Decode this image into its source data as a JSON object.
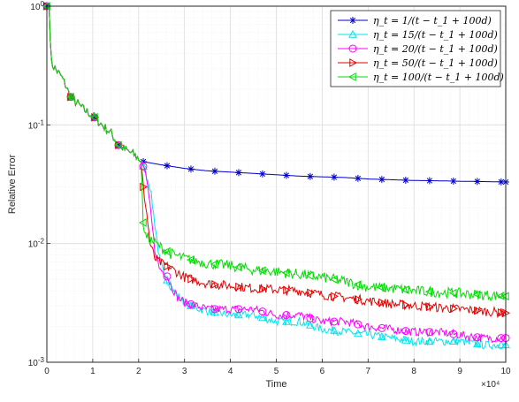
{
  "chart_data": {
    "type": "line",
    "title": "",
    "xlabel": "Time",
    "ylabel": "Relative Error",
    "x_multiplier_label": "×10⁴",
    "x_scale": 10000,
    "xlim": [
      0,
      100000
    ],
    "ylim": [
      0.001,
      1
    ],
    "y_scale": "log",
    "grid": true,
    "minor_grid": true,
    "legend_position": "top-right",
    "x_ticks": [
      0,
      1,
      2,
      3,
      4,
      5,
      6,
      7,
      8,
      9,
      10
    ],
    "y_ticks": [
      {
        "value": 1,
        "base": "10",
        "exp": "0"
      },
      {
        "value": 0.1,
        "base": "10",
        "exp": "-1"
      },
      {
        "value": 0.01,
        "base": "10",
        "exp": "-2"
      },
      {
        "value": 0.001,
        "base": "10",
        "exp": "-3"
      }
    ],
    "common_prefix": [
      [
        0,
        1.0
      ],
      [
        500,
        0.95
      ],
      [
        1000,
        0.33
      ],
      [
        2000,
        0.29
      ],
      [
        3000,
        0.26
      ],
      [
        4000,
        0.22
      ],
      [
        5000,
        0.175
      ],
      [
        6000,
        0.16
      ],
      [
        8000,
        0.135
      ],
      [
        10000,
        0.12
      ],
      [
        12000,
        0.1
      ],
      [
        14000,
        0.085
      ],
      [
        15500,
        0.068
      ],
      [
        17000,
        0.062
      ],
      [
        19000,
        0.056
      ],
      [
        20500,
        0.05
      ]
    ],
    "series": [
      {
        "name": "η_t = 1/(t − t_1 + 100d)",
        "color": "#0000cc",
        "marker": "star",
        "noise": 0.0,
        "points": [
          [
            20500,
            0.05
          ],
          [
            21000,
            0.049
          ],
          [
            25000,
            0.046
          ],
          [
            30000,
            0.043
          ],
          [
            35000,
            0.041
          ],
          [
            40000,
            0.04
          ],
          [
            45000,
            0.039
          ],
          [
            50000,
            0.038
          ],
          [
            55000,
            0.037
          ],
          [
            60000,
            0.0365
          ],
          [
            65000,
            0.036
          ],
          [
            70000,
            0.035
          ],
          [
            75000,
            0.0345
          ],
          [
            80000,
            0.034
          ],
          [
            85000,
            0.0338
          ],
          [
            90000,
            0.0335
          ],
          [
            95000,
            0.0333
          ],
          [
            100000,
            0.033
          ]
        ]
      },
      {
        "name": "η_t = 15/(t − t_1 + 100d)",
        "color": "#00e5ee",
        "marker": "triangle",
        "noise": 0.035,
        "points": [
          [
            20500,
            0.05
          ],
          [
            21500,
            0.04
          ],
          [
            22500,
            0.03
          ],
          [
            23500,
            0.015
          ],
          [
            24500,
            0.0075
          ],
          [
            25500,
            0.0055
          ],
          [
            26500,
            0.0047
          ],
          [
            28000,
            0.0038
          ],
          [
            30000,
            0.0032
          ],
          [
            32000,
            0.0029
          ],
          [
            35000,
            0.0027
          ],
          [
            40000,
            0.0025
          ],
          [
            45000,
            0.0025
          ],
          [
            50000,
            0.0022
          ],
          [
            55000,
            0.0022
          ],
          [
            60000,
            0.0019
          ],
          [
            65000,
            0.0018
          ],
          [
            70000,
            0.0017
          ],
          [
            75000,
            0.0016
          ],
          [
            80000,
            0.0015
          ],
          [
            85000,
            0.0015
          ],
          [
            90000,
            0.0015
          ],
          [
            95000,
            0.0014
          ],
          [
            100000,
            0.0014
          ]
        ]
      },
      {
        "name": "η_t = 20/(t − t_1 + 100d)",
        "color": "#ff00ff",
        "marker": "circle",
        "noise": 0.035,
        "points": [
          [
            20500,
            0.05
          ],
          [
            21500,
            0.04
          ],
          [
            22500,
            0.02
          ],
          [
            23500,
            0.009
          ],
          [
            24500,
            0.0062
          ],
          [
            26000,
            0.0055
          ],
          [
            27000,
            0.0045
          ],
          [
            28500,
            0.0035
          ],
          [
            30000,
            0.0032
          ],
          [
            35000,
            0.0028
          ],
          [
            40000,
            0.0028
          ],
          [
            45000,
            0.0028
          ],
          [
            50000,
            0.0025
          ],
          [
            55000,
            0.0025
          ],
          [
            60000,
            0.0022
          ],
          [
            65000,
            0.0022
          ],
          [
            70000,
            0.002
          ],
          [
            75000,
            0.0019
          ],
          [
            80000,
            0.0018
          ],
          [
            85000,
            0.0018
          ],
          [
            90000,
            0.0017
          ],
          [
            95000,
            0.0016
          ],
          [
            100000,
            0.0016
          ]
        ]
      },
      {
        "name": "η_t = 50/(t − t_1 + 100d)",
        "color": "#e60000",
        "marker": "triangle-right",
        "noise": 0.04,
        "points": [
          [
            20500,
            0.05
          ],
          [
            21000,
            0.03
          ],
          [
            21800,
            0.0175
          ],
          [
            22500,
            0.01
          ],
          [
            23500,
            0.0075
          ],
          [
            25000,
            0.0068
          ],
          [
            27000,
            0.0062
          ],
          [
            30000,
            0.0052
          ],
          [
            35000,
            0.0046
          ],
          [
            40000,
            0.0044
          ],
          [
            45000,
            0.0042
          ],
          [
            50000,
            0.0041
          ],
          [
            55000,
            0.004
          ],
          [
            60000,
            0.0037
          ],
          [
            65000,
            0.0035
          ],
          [
            70000,
            0.0033
          ],
          [
            75000,
            0.0031
          ],
          [
            80000,
            0.003
          ],
          [
            85000,
            0.0029
          ],
          [
            90000,
            0.0028
          ],
          [
            95000,
            0.0027
          ],
          [
            100000,
            0.0026
          ]
        ]
      },
      {
        "name": "η_t = 100/(t − t_1 + 100d)",
        "color": "#00dd00",
        "marker": "triangle-left",
        "noise": 0.045,
        "points": [
          [
            20500,
            0.05
          ],
          [
            21000,
            0.015
          ],
          [
            21500,
            0.0115
          ],
          [
            23000,
            0.0105
          ],
          [
            25000,
            0.0092
          ],
          [
            27000,
            0.0082
          ],
          [
            30000,
            0.0075
          ],
          [
            35000,
            0.0068
          ],
          [
            40000,
            0.0065
          ],
          [
            45000,
            0.006
          ],
          [
            50000,
            0.0058
          ],
          [
            55000,
            0.0055
          ],
          [
            60000,
            0.0052
          ],
          [
            65000,
            0.0048
          ],
          [
            70000,
            0.0043
          ],
          [
            75000,
            0.0042
          ],
          [
            80000,
            0.004
          ],
          [
            85000,
            0.0039
          ],
          [
            90000,
            0.0038
          ],
          [
            95000,
            0.0037
          ],
          [
            100000,
            0.0036
          ]
        ]
      }
    ]
  }
}
